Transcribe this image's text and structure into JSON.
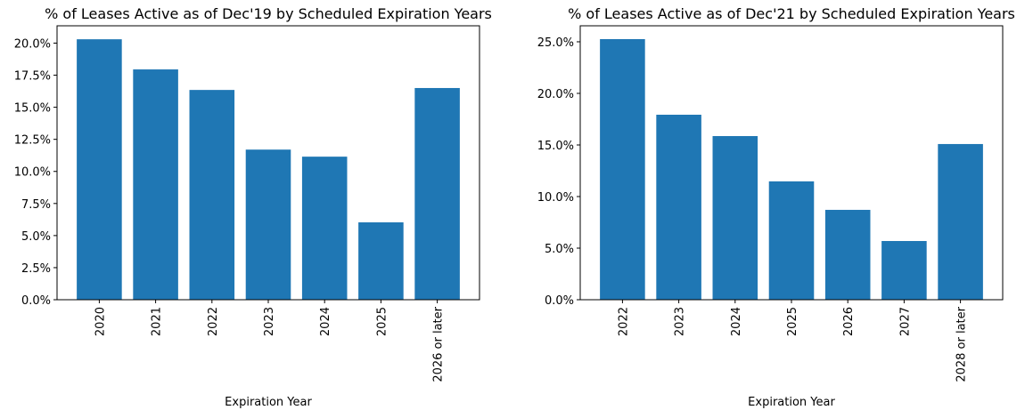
{
  "chart_data": [
    {
      "type": "bar",
      "title": "% of Leases Active as of Dec'19 by Scheduled Expiration Years",
      "x_label": "Expiration Year",
      "categories": [
        "2020",
        "2021",
        "2022",
        "2023",
        "2024",
        "2025",
        "2026 or later"
      ],
      "values": [
        20.3,
        17.95,
        16.35,
        11.7,
        11.15,
        6.03,
        16.5
      ],
      "color": "#1f77b4",
      "ylim": [
        0,
        21.35
      ],
      "yticks": [
        {
          "value": 0,
          "label": "0.0%"
        },
        {
          "value": 2.5,
          "label": "2.5%"
        },
        {
          "value": 5,
          "label": "5.0%"
        },
        {
          "value": 7.5,
          "label": "7.5%"
        },
        {
          "value": 10,
          "label": "10.0%"
        },
        {
          "value": 12.5,
          "label": "12.5%"
        },
        {
          "value": 15,
          "label": "15.0%"
        },
        {
          "value": 17.5,
          "label": "17.5%"
        },
        {
          "value": 20,
          "label": "20.0%"
        }
      ]
    },
    {
      "type": "bar",
      "title": "% of Leases Active as of Dec'21 by Scheduled Expiration Years",
      "x_label": "Expiration Year",
      "categories": [
        "2022",
        "2023",
        "2024",
        "2025",
        "2026",
        "2027",
        "2028 or later"
      ],
      "values": [
        25.26,
        17.93,
        15.86,
        11.47,
        8.71,
        5.69,
        15.09
      ],
      "color": "#1f77b4",
      "ylim": [
        0,
        26.55
      ],
      "yticks": [
        {
          "value": 0,
          "label": "0.0%"
        },
        {
          "value": 5,
          "label": "5.0%"
        },
        {
          "value": 10,
          "label": "10.0%"
        },
        {
          "value": 15,
          "label": "15.0%"
        },
        {
          "value": 20,
          "label": "20.0%"
        },
        {
          "value": 25,
          "label": "25.0%"
        }
      ]
    }
  ]
}
